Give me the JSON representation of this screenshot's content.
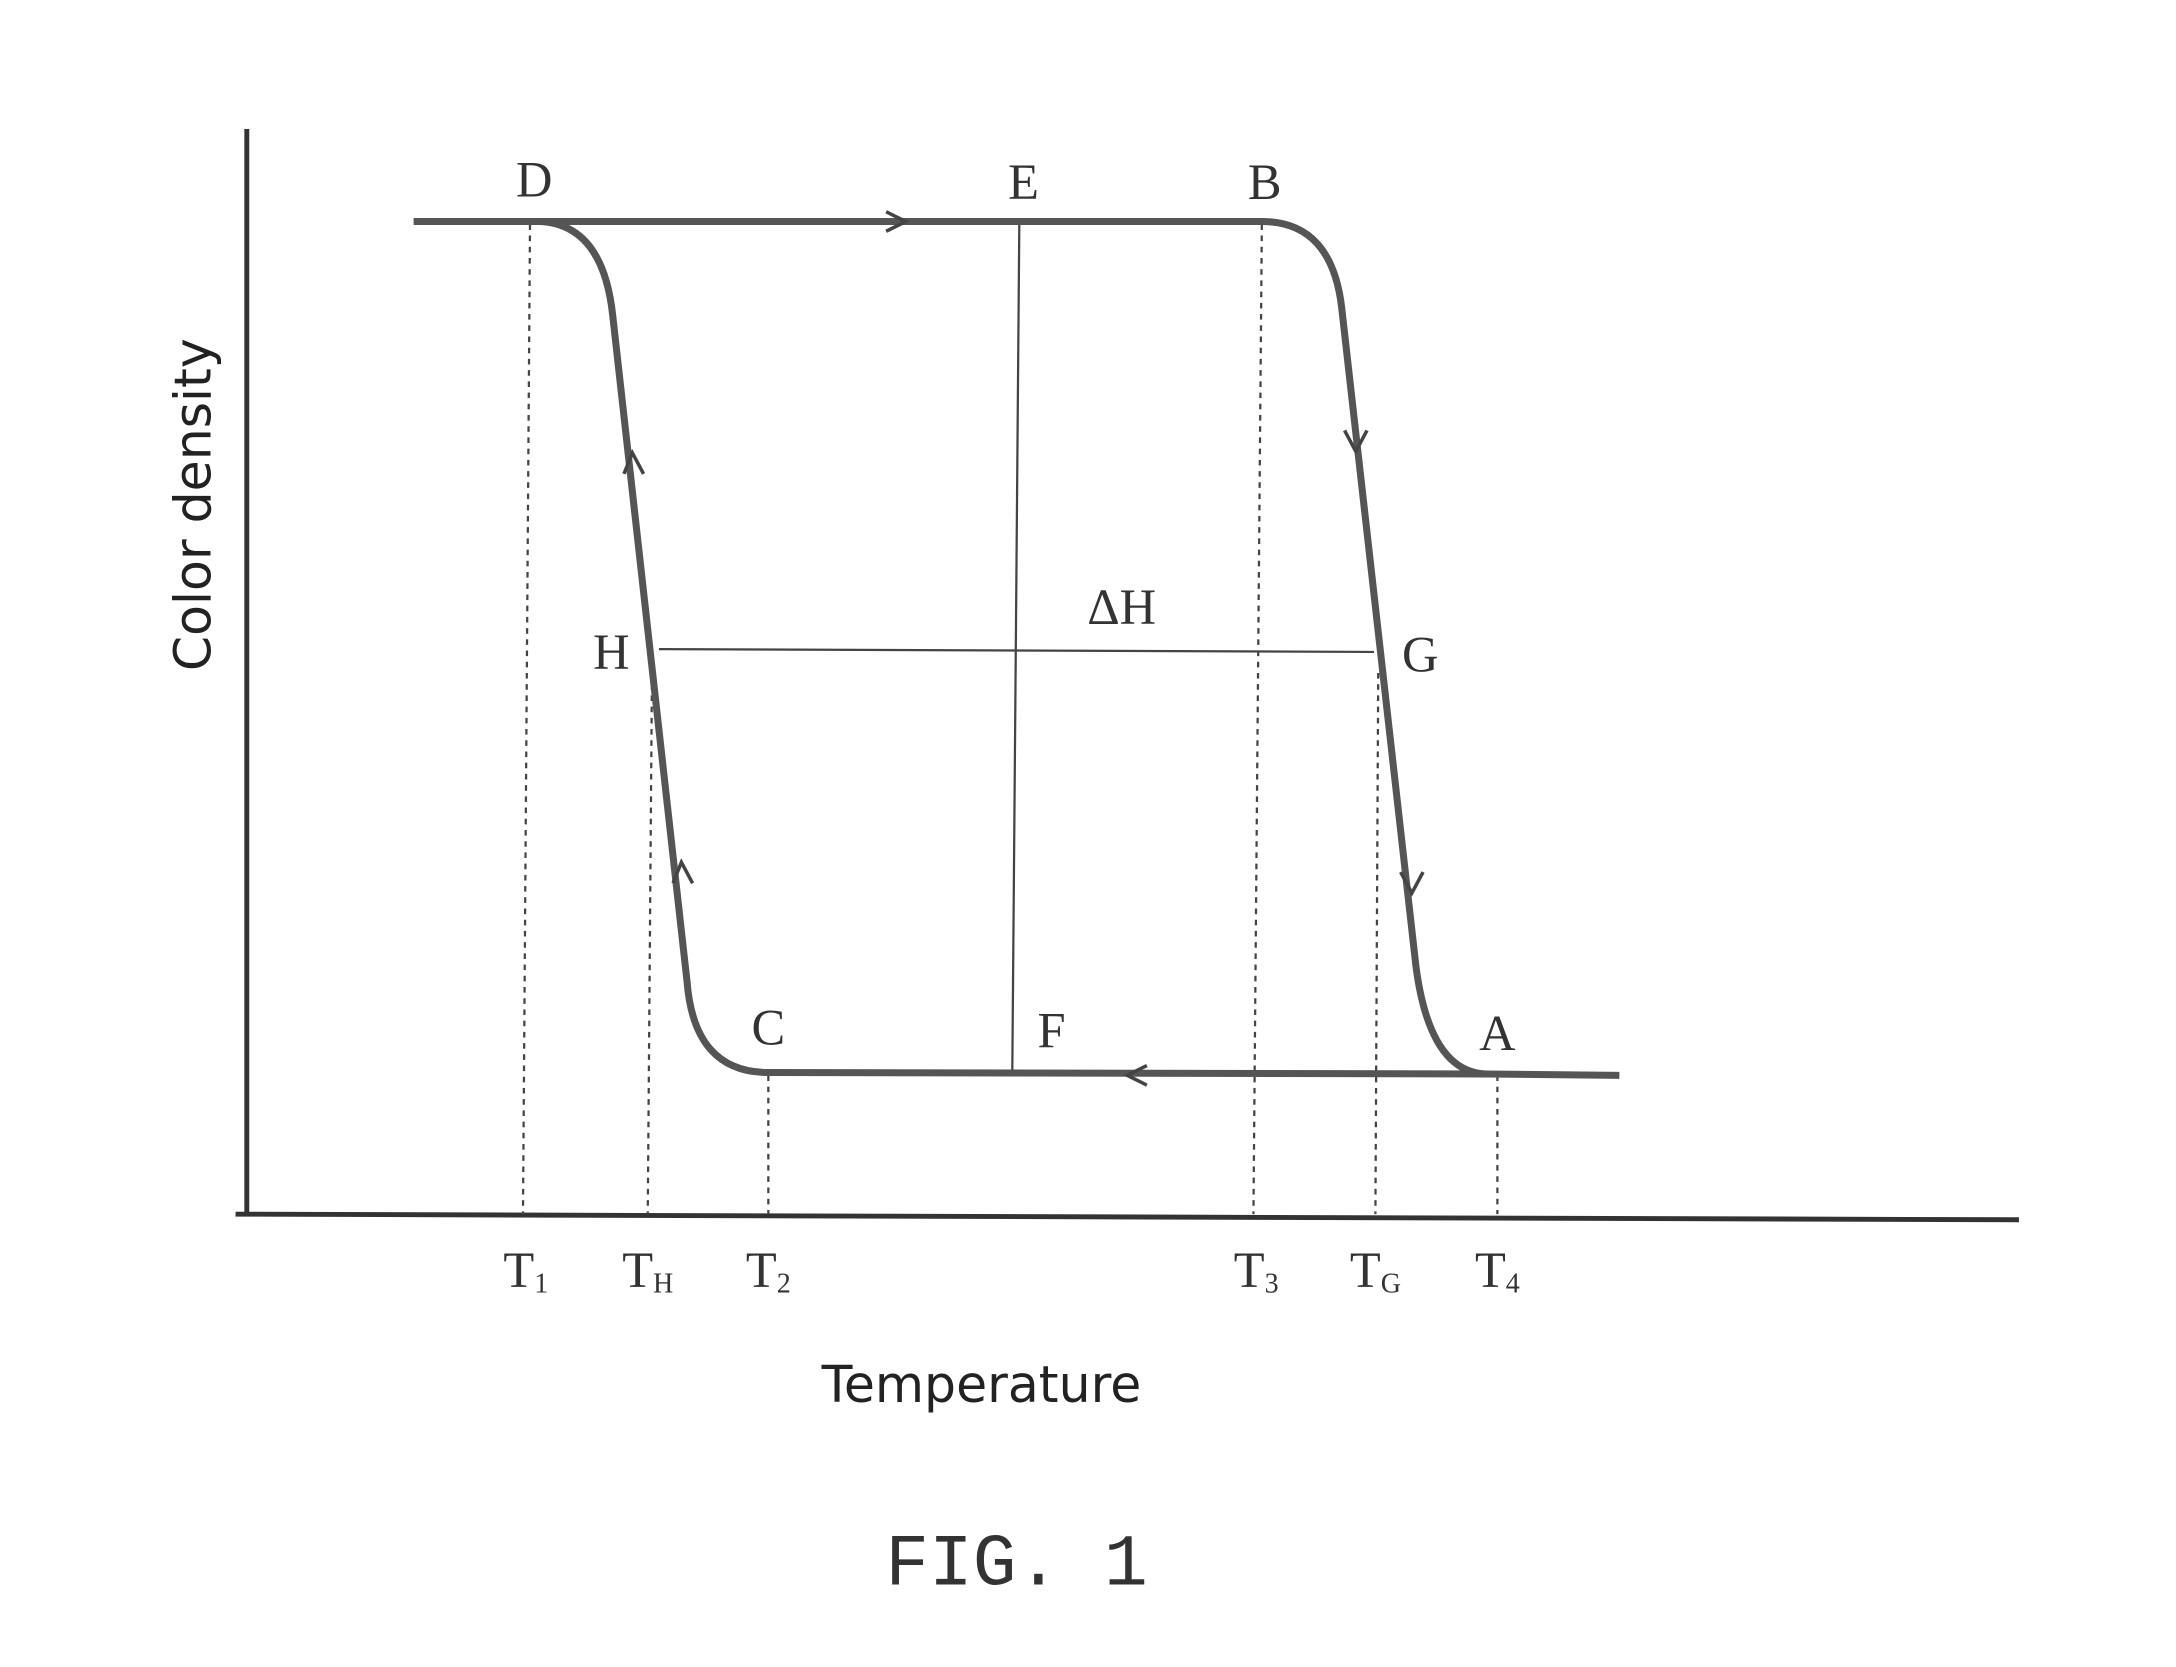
{
  "axes": {
    "y_label": "Color density",
    "x_label": "Temperature"
  },
  "points": {
    "D": "D",
    "E": "E",
    "B": "B",
    "H": "H",
    "G": "G",
    "C": "C",
    "F": "F",
    "A": "A"
  },
  "delta_label": "ΔH",
  "ticks": [
    {
      "base": "T",
      "sub": "1"
    },
    {
      "base": "T",
      "sub": "H"
    },
    {
      "base": "T",
      "sub": "2"
    },
    {
      "base": "T",
      "sub": "3"
    },
    {
      "base": "T",
      "sub": "G"
    },
    {
      "base": "T",
      "sub": "4"
    }
  ],
  "caption": "FIG. 1"
}
